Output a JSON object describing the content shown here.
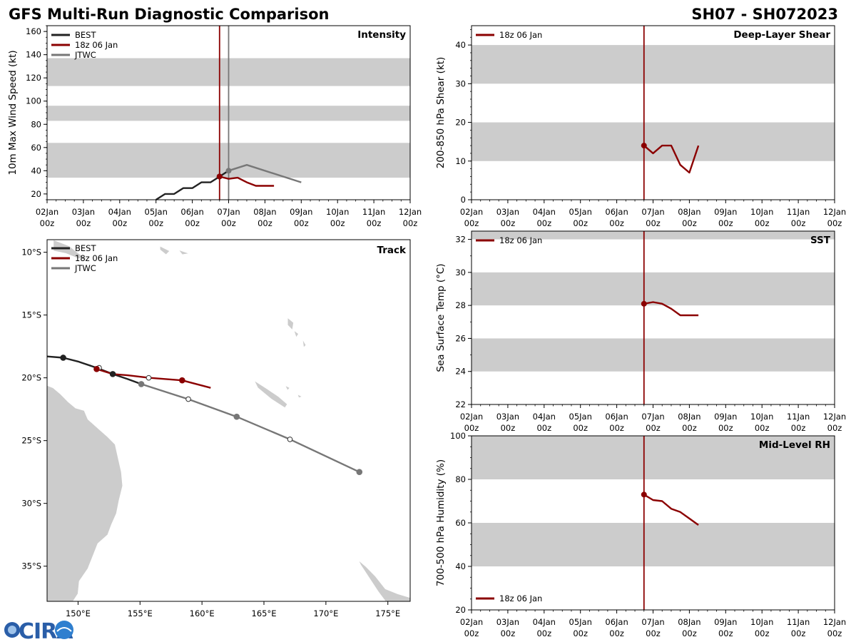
{
  "header": {
    "title": "GFS Multi-Run Diagnostic Comparison",
    "storm_id": "SH07 - SH072023"
  },
  "colors": {
    "best": "#222222",
    "run": "#8b0000",
    "jtwc": "#777777",
    "band": "#cccccc",
    "land": "#cccccc"
  },
  "time_axis": {
    "ticks": [
      "02Jan",
      "03Jan",
      "04Jan",
      "05Jan",
      "06Jan",
      "07Jan",
      "08Jan",
      "09Jan",
      "10Jan",
      "11Jan",
      "12Jan"
    ],
    "sub": "00z"
  },
  "logo": {
    "text": "CIRA"
  },
  "chart_data": [
    {
      "id": "intensity",
      "type": "line",
      "title": "Intensity",
      "ylabel": "10m Max Wind Speed (kt)",
      "ylim": [
        15,
        165
      ],
      "yticks": [
        20,
        40,
        60,
        80,
        100,
        120,
        140,
        160
      ],
      "xlim": [
        0,
        10
      ],
      "bands": [
        [
          34,
          64
        ],
        [
          83,
          96
        ],
        [
          113,
          137
        ]
      ],
      "vlines": [
        {
          "x": 4.75,
          "series": "run"
        },
        {
          "x": 5.0,
          "series": "jtwc"
        }
      ],
      "legend": [
        "BEST",
        "18z 06 Jan",
        "JTWC"
      ],
      "legend_series": [
        "best",
        "run",
        "jtwc"
      ],
      "series": [
        {
          "name": "BEST",
          "key": "best",
          "x": [
            3.0,
            3.25,
            3.5,
            3.75,
            4.0,
            4.25,
            4.5,
            4.75,
            5.0
          ],
          "y": [
            15,
            20,
            20,
            25,
            25,
            30,
            30,
            35,
            40
          ],
          "marker_x": [
            4.75
          ],
          "marker_y": [
            35
          ]
        },
        {
          "name": "18z 06 Jan",
          "key": "run",
          "x": [
            4.75,
            5.0,
            5.25,
            5.5,
            5.75,
            6.0,
            6.25
          ],
          "y": [
            35,
            33,
            34,
            30,
            27,
            27,
            27
          ],
          "marker_x": [
            4.75
          ],
          "marker_y": [
            35
          ]
        },
        {
          "name": "JTWC",
          "key": "jtwc",
          "x": [
            5.0,
            5.5,
            7.0
          ],
          "y": [
            40,
            45,
            30
          ],
          "marker_x": [
            5.0
          ],
          "marker_y": [
            40
          ]
        }
      ]
    },
    {
      "id": "shear",
      "type": "line",
      "title": "Deep-Layer Shear",
      "ylabel": "200-850 hPa Shear (kt)",
      "ylim": [
        0,
        45
      ],
      "yticks": [
        0,
        10,
        20,
        30,
        40
      ],
      "xlim": [
        0,
        10
      ],
      "bands": [
        [
          10,
          20
        ],
        [
          30,
          40
        ]
      ],
      "vlines": [
        {
          "x": 4.75,
          "series": "run"
        }
      ],
      "legend": [
        "18z 06 Jan"
      ],
      "legend_series": [
        "run"
      ],
      "series": [
        {
          "name": "18z 06 Jan",
          "key": "run",
          "x": [
            4.75,
            5.0,
            5.25,
            5.5,
            5.75,
            6.0,
            6.25
          ],
          "y": [
            14,
            12,
            14,
            14,
            9,
            7,
            14
          ],
          "marker_x": [
            4.75
          ],
          "marker_y": [
            14
          ]
        }
      ]
    },
    {
      "id": "sst",
      "type": "line",
      "title": "SST",
      "ylabel": "Sea Surface Temp (°C)",
      "ylim": [
        22,
        32.5
      ],
      "yticks": [
        22,
        24,
        26,
        28,
        30,
        32
      ],
      "xlim": [
        0,
        10
      ],
      "bands": [
        [
          24,
          26
        ],
        [
          28,
          30
        ],
        [
          32,
          32.5
        ]
      ],
      "vlines": [
        {
          "x": 4.75,
          "series": "run"
        }
      ],
      "legend": [
        "18z 06 Jan"
      ],
      "legend_series": [
        "run"
      ],
      "series": [
        {
          "name": "18z 06 Jan",
          "key": "run",
          "x": [
            4.75,
            5.0,
            5.25,
            5.5,
            5.75,
            6.0,
            6.25
          ],
          "y": [
            28.1,
            28.2,
            28.1,
            27.8,
            27.4,
            27.4,
            27.4
          ],
          "marker_x": [
            4.75
          ],
          "marker_y": [
            28.1
          ]
        }
      ]
    },
    {
      "id": "rh",
      "type": "line",
      "title": "Mid-Level RH",
      "ylabel": "700-500 hPa Humidity (%)",
      "ylim": [
        20,
        100
      ],
      "yticks": [
        20,
        40,
        60,
        80,
        100
      ],
      "xlim": [
        0,
        10
      ],
      "bands": [
        [
          40,
          60
        ],
        [
          80,
          100
        ]
      ],
      "vlines": [
        {
          "x": 4.75,
          "series": "run"
        }
      ],
      "legend": [
        "18z 06 Jan"
      ],
      "legend_series": [
        "run"
      ],
      "series": [
        {
          "name": "18z 06 Jan",
          "key": "run",
          "x": [
            4.75,
            5.0,
            5.25,
            5.5,
            5.75,
            6.0,
            6.25
          ],
          "y": [
            73,
            70.5,
            70,
            66.5,
            65,
            62,
            59
          ],
          "marker_x": [
            4.75
          ],
          "marker_y": [
            73
          ]
        }
      ]
    },
    {
      "id": "track",
      "type": "scatter",
      "title": "Track",
      "xlim": [
        147.5,
        176.8
      ],
      "ylim": [
        -37.8,
        -9.0
      ],
      "xticks": [
        150,
        155,
        160,
        165,
        170,
        175
      ],
      "xtick_labels": [
        "150°E",
        "155°E",
        "160°E",
        "165°E",
        "170°E",
        "175°E"
      ],
      "yticks": [
        -10,
        -15,
        -20,
        -25,
        -30,
        -35
      ],
      "ytick_labels": [
        "10°S",
        "15°S",
        "20°S",
        "25°S",
        "30°S",
        "35°S"
      ],
      "legend": [
        "BEST",
        "18z 06 Jan",
        "JTWC"
      ],
      "legend_series": [
        "best",
        "run",
        "jtwc"
      ],
      "series": [
        {
          "name": "BEST",
          "key": "best",
          "lon": [
            147.5,
            148.8,
            150.0,
            151.5,
            152.8,
            154.0,
            155.1
          ],
          "lat": [
            -18.3,
            -18.4,
            -18.7,
            -19.2,
            -19.7,
            -20.1,
            -20.5
          ],
          "markers": [
            [
              148.8,
              -18.4,
              "filled"
            ],
            [
              151.7,
              -19.2,
              "open"
            ],
            [
              152.8,
              -19.7,
              "filled"
            ]
          ]
        },
        {
          "name": "18z 06 Jan",
          "key": "run",
          "lon": [
            151.5,
            152.8,
            154.0,
            155.7,
            158.4,
            160.7
          ],
          "lat": [
            -19.3,
            -19.7,
            -19.8,
            -20.0,
            -20.2,
            -20.8
          ],
          "markers": [
            [
              151.5,
              -19.3,
              "filled"
            ],
            [
              155.7,
              -20.0,
              "open"
            ],
            [
              158.4,
              -20.2,
              "filled"
            ]
          ]
        },
        {
          "name": "JTWC",
          "key": "jtwc",
          "lon": [
            155.1,
            158.9,
            162.8,
            167.1,
            172.7
          ],
          "lat": [
            -20.5,
            -21.7,
            -23.1,
            -24.9,
            -27.5
          ],
          "markers": [
            [
              155.1,
              -20.5,
              "filled"
            ],
            [
              158.9,
              -21.7,
              "open"
            ],
            [
              162.8,
              -23.1,
              "filled"
            ],
            [
              167.1,
              -24.9,
              "open"
            ],
            [
              172.7,
              -27.5,
              "filled"
            ]
          ]
        }
      ],
      "land": [
        [
          [
            147.5,
            -20.6
          ],
          [
            148.0,
            -20.8
          ],
          [
            148.6,
            -21.3
          ],
          [
            149.2,
            -21.9
          ],
          [
            149.8,
            -22.4
          ],
          [
            150.5,
            -22.6
          ],
          [
            150.8,
            -23.3
          ],
          [
            151.6,
            -24.0
          ],
          [
            152.4,
            -24.7
          ],
          [
            153.0,
            -25.3
          ],
          [
            153.2,
            -26.2
          ],
          [
            153.5,
            -27.5
          ],
          [
            153.6,
            -28.6
          ],
          [
            153.3,
            -29.8
          ],
          [
            153.1,
            -30.8
          ],
          [
            152.7,
            -31.7
          ],
          [
            152.4,
            -32.5
          ],
          [
            151.6,
            -33.2
          ],
          [
            151.2,
            -34.2
          ],
          [
            150.8,
            -35.2
          ],
          [
            150.1,
            -36.2
          ],
          [
            150.0,
            -37.2
          ],
          [
            149.6,
            -37.8
          ],
          [
            147.5,
            -37.8
          ]
        ],
        [
          [
            148.0,
            -9.0
          ],
          [
            149.3,
            -9.5
          ],
          [
            150.2,
            -10.2
          ],
          [
            150.8,
            -10.6
          ],
          [
            150.0,
            -10.5
          ],
          [
            149.0,
            -10.1
          ],
          [
            148.0,
            -9.9
          ]
        ],
        [
          [
            156.6,
            -9.5
          ],
          [
            157.4,
            -9.9
          ],
          [
            157.1,
            -10.2
          ],
          [
            156.6,
            -9.8
          ]
        ],
        [
          [
            158.1,
            -9.8
          ],
          [
            159.0,
            -10.1
          ],
          [
            158.4,
            -10.2
          ]
        ],
        [
          [
            164.2,
            -20.2
          ],
          [
            165.3,
            -20.9
          ],
          [
            166.2,
            -21.5
          ],
          [
            166.9,
            -22.1
          ],
          [
            166.7,
            -22.4
          ],
          [
            165.6,
            -21.7
          ],
          [
            164.5,
            -20.8
          ]
        ],
        [
          [
            166.9,
            -15.2
          ],
          [
            167.4,
            -15.6
          ],
          [
            167.3,
            -16.2
          ],
          [
            166.9,
            -15.8
          ]
        ],
        [
          [
            167.4,
            -16.2
          ],
          [
            167.8,
            -16.5
          ],
          [
            167.6,
            -16.8
          ]
        ],
        [
          [
            168.1,
            -16.9
          ],
          [
            168.4,
            -17.4
          ],
          [
            168.2,
            -17.6
          ]
        ],
        [
          [
            166.7,
            -20.6
          ],
          [
            167.1,
            -20.8
          ],
          [
            166.9,
            -21.0
          ]
        ],
        [
          [
            167.7,
            -21.3
          ],
          [
            168.1,
            -21.5
          ],
          [
            167.8,
            -21.6
          ]
        ],
        [
          [
            172.6,
            -34.5
          ],
          [
            173.2,
            -35.0
          ],
          [
            174.0,
            -35.8
          ],
          [
            174.8,
            -36.8
          ],
          [
            175.8,
            -37.2
          ],
          [
            176.8,
            -37.5
          ],
          [
            176.8,
            -37.8
          ],
          [
            174.8,
            -37.8
          ],
          [
            174.2,
            -37.0
          ],
          [
            173.4,
            -35.8
          ],
          [
            172.8,
            -34.9
          ]
        ]
      ]
    }
  ]
}
